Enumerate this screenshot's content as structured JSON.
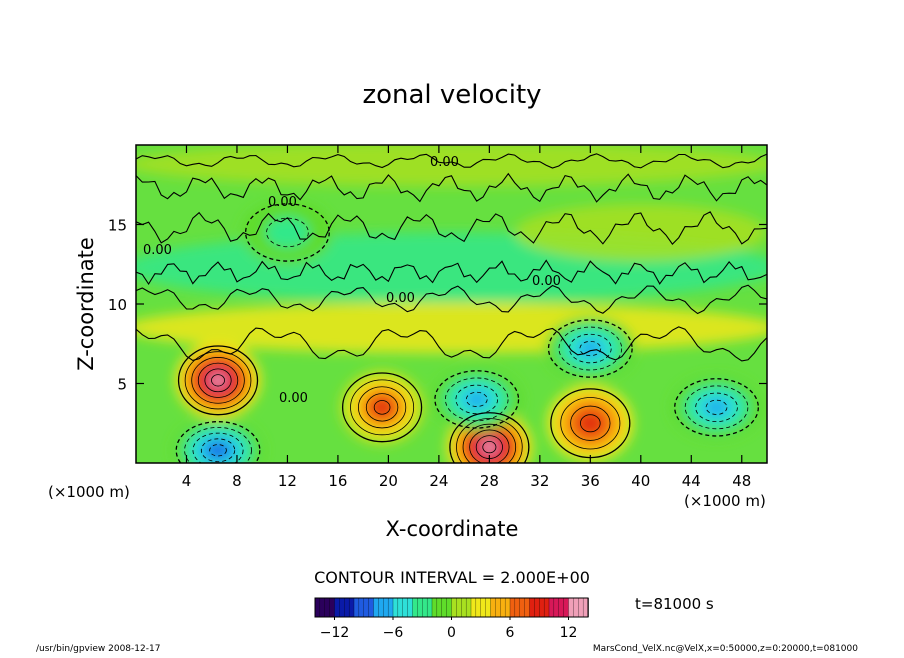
{
  "chart_data": {
    "type": "heatmap",
    "title": "zonal velocity",
    "xlabel": "X-coordinate",
    "ylabel": "Z-coordinate",
    "x_unit": "(×1000 m)",
    "y_unit": "(×1000 m)",
    "xlim": [
      0,
      50
    ],
    "ylim": [
      0,
      20
    ],
    "xticks": [
      4,
      8,
      12,
      16,
      20,
      24,
      28,
      32,
      36,
      40,
      44,
      48
    ],
    "yticks": [
      5,
      10,
      15
    ],
    "contour_interval_label": "CONTOUR INTERVAL = 2.000E+00",
    "contour_labels": [
      "0.00",
      "0.00",
      "0.00",
      "0.00",
      "0.00",
      "0.00"
    ],
    "colorbar": {
      "min": -14,
      "max": 14,
      "ticks": [
        -12,
        -6,
        0,
        6,
        12
      ],
      "colors": [
        "#2b005c",
        "#0a1aa8",
        "#1f5be0",
        "#1fa8f0",
        "#2ee0d8",
        "#33e88a",
        "#5fdc2a",
        "#a8e020",
        "#f0e81a",
        "#f8b010",
        "#f06010",
        "#e02010",
        "#d81858",
        "#f0a0b8"
      ]
    },
    "features": [
      {
        "kind": "positive",
        "x": 6.5,
        "z": 5.2,
        "value": 12
      },
      {
        "kind": "positive",
        "x": 19.5,
        "z": 3.5,
        "value": 9
      },
      {
        "kind": "positive",
        "x": 28,
        "z": 1.0,
        "value": 12
      },
      {
        "kind": "positive",
        "x": 36,
        "z": 2.5,
        "value": 8
      },
      {
        "kind": "negative",
        "x": 6.5,
        "z": 0.8,
        "value": -9
      },
      {
        "kind": "negative",
        "x": 27,
        "z": 4.0,
        "value": -7
      },
      {
        "kind": "negative",
        "x": 36,
        "z": 7.2,
        "value": -8
      },
      {
        "kind": "negative",
        "x": 46,
        "z": 3.5,
        "value": -8
      },
      {
        "kind": "negative",
        "x": 12,
        "z": 14.5,
        "value": -4
      }
    ],
    "grid": false
  },
  "time_label": "t=81000 s",
  "footer": {
    "left": "/usr/bin/gpview   2008-12-17",
    "right": "MarsCond_VelX.nc@VelX,x=0:50000,z=0:20000,t=081000"
  }
}
